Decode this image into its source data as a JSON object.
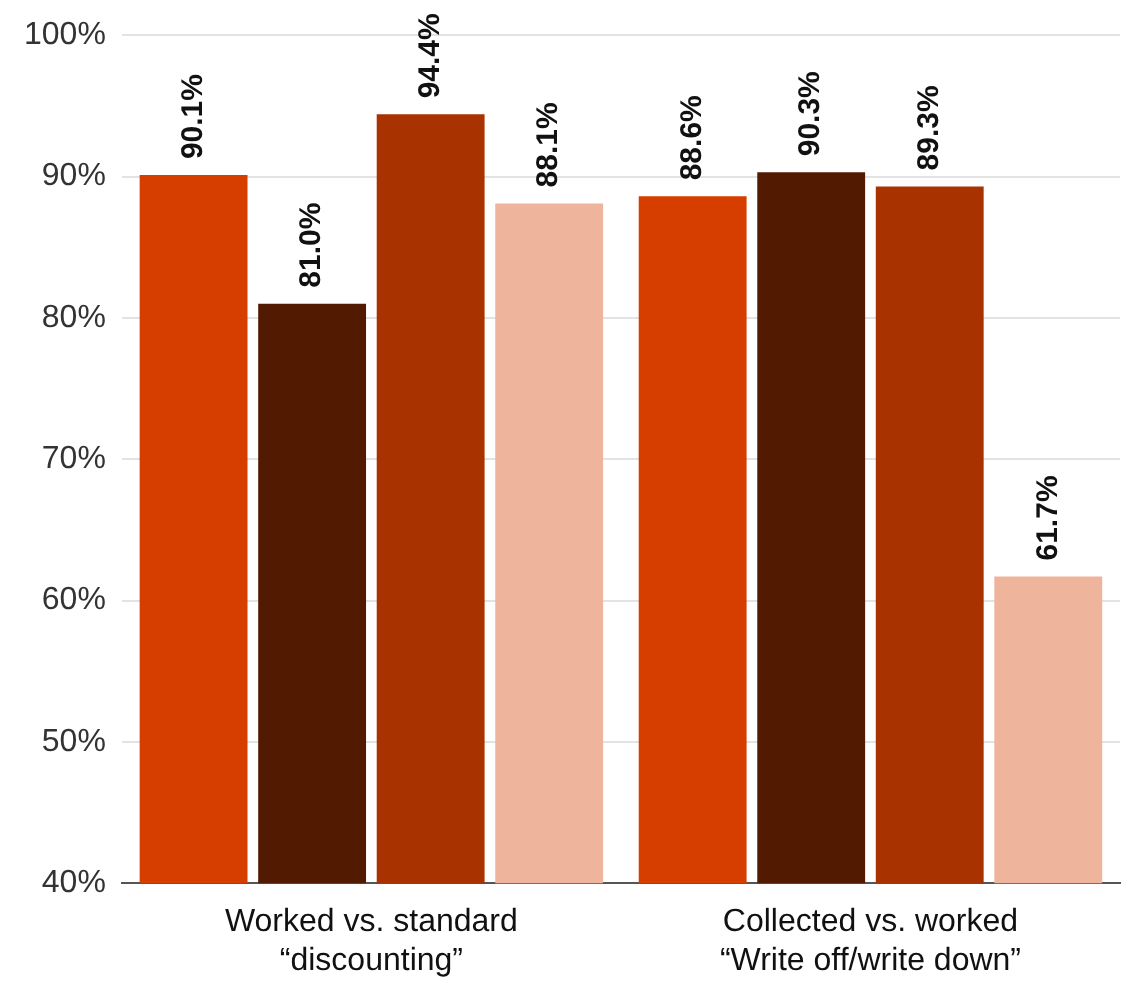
{
  "chart_data": {
    "type": "bar",
    "categories": [
      "Worked vs. standard\n“discounting”",
      "Collected vs. worked\n“Write off/write down”"
    ],
    "series": [
      {
        "color": "#d63e00",
        "values": [
          90.1,
          88.6
        ],
        "value_labels": [
          "90.1%",
          "88.6%"
        ]
      },
      {
        "color": "#521a00",
        "values": [
          81.0,
          90.3
        ],
        "value_labels": [
          "81.0%",
          "90.3%"
        ]
      },
      {
        "color": "#a83200",
        "values": [
          94.4,
          89.3
        ],
        "value_labels": [
          "94.4%",
          "89.3%"
        ]
      },
      {
        "color": "#efb49c",
        "values": [
          88.1,
          61.7
        ],
        "value_labels": [
          "88.1%",
          "61.7%"
        ]
      }
    ],
    "ylim": [
      40,
      100
    ],
    "yticks": [
      {
        "value": 40,
        "label": "40%"
      },
      {
        "value": 50,
        "label": "50%"
      },
      {
        "value": 60,
        "label": "60%"
      },
      {
        "value": 70,
        "label": "70%"
      },
      {
        "value": 80,
        "label": "80%"
      },
      {
        "value": 90,
        "label": "90%"
      },
      {
        "value": 100,
        "label": "100%"
      }
    ],
    "grid": "y",
    "legend": false
  }
}
